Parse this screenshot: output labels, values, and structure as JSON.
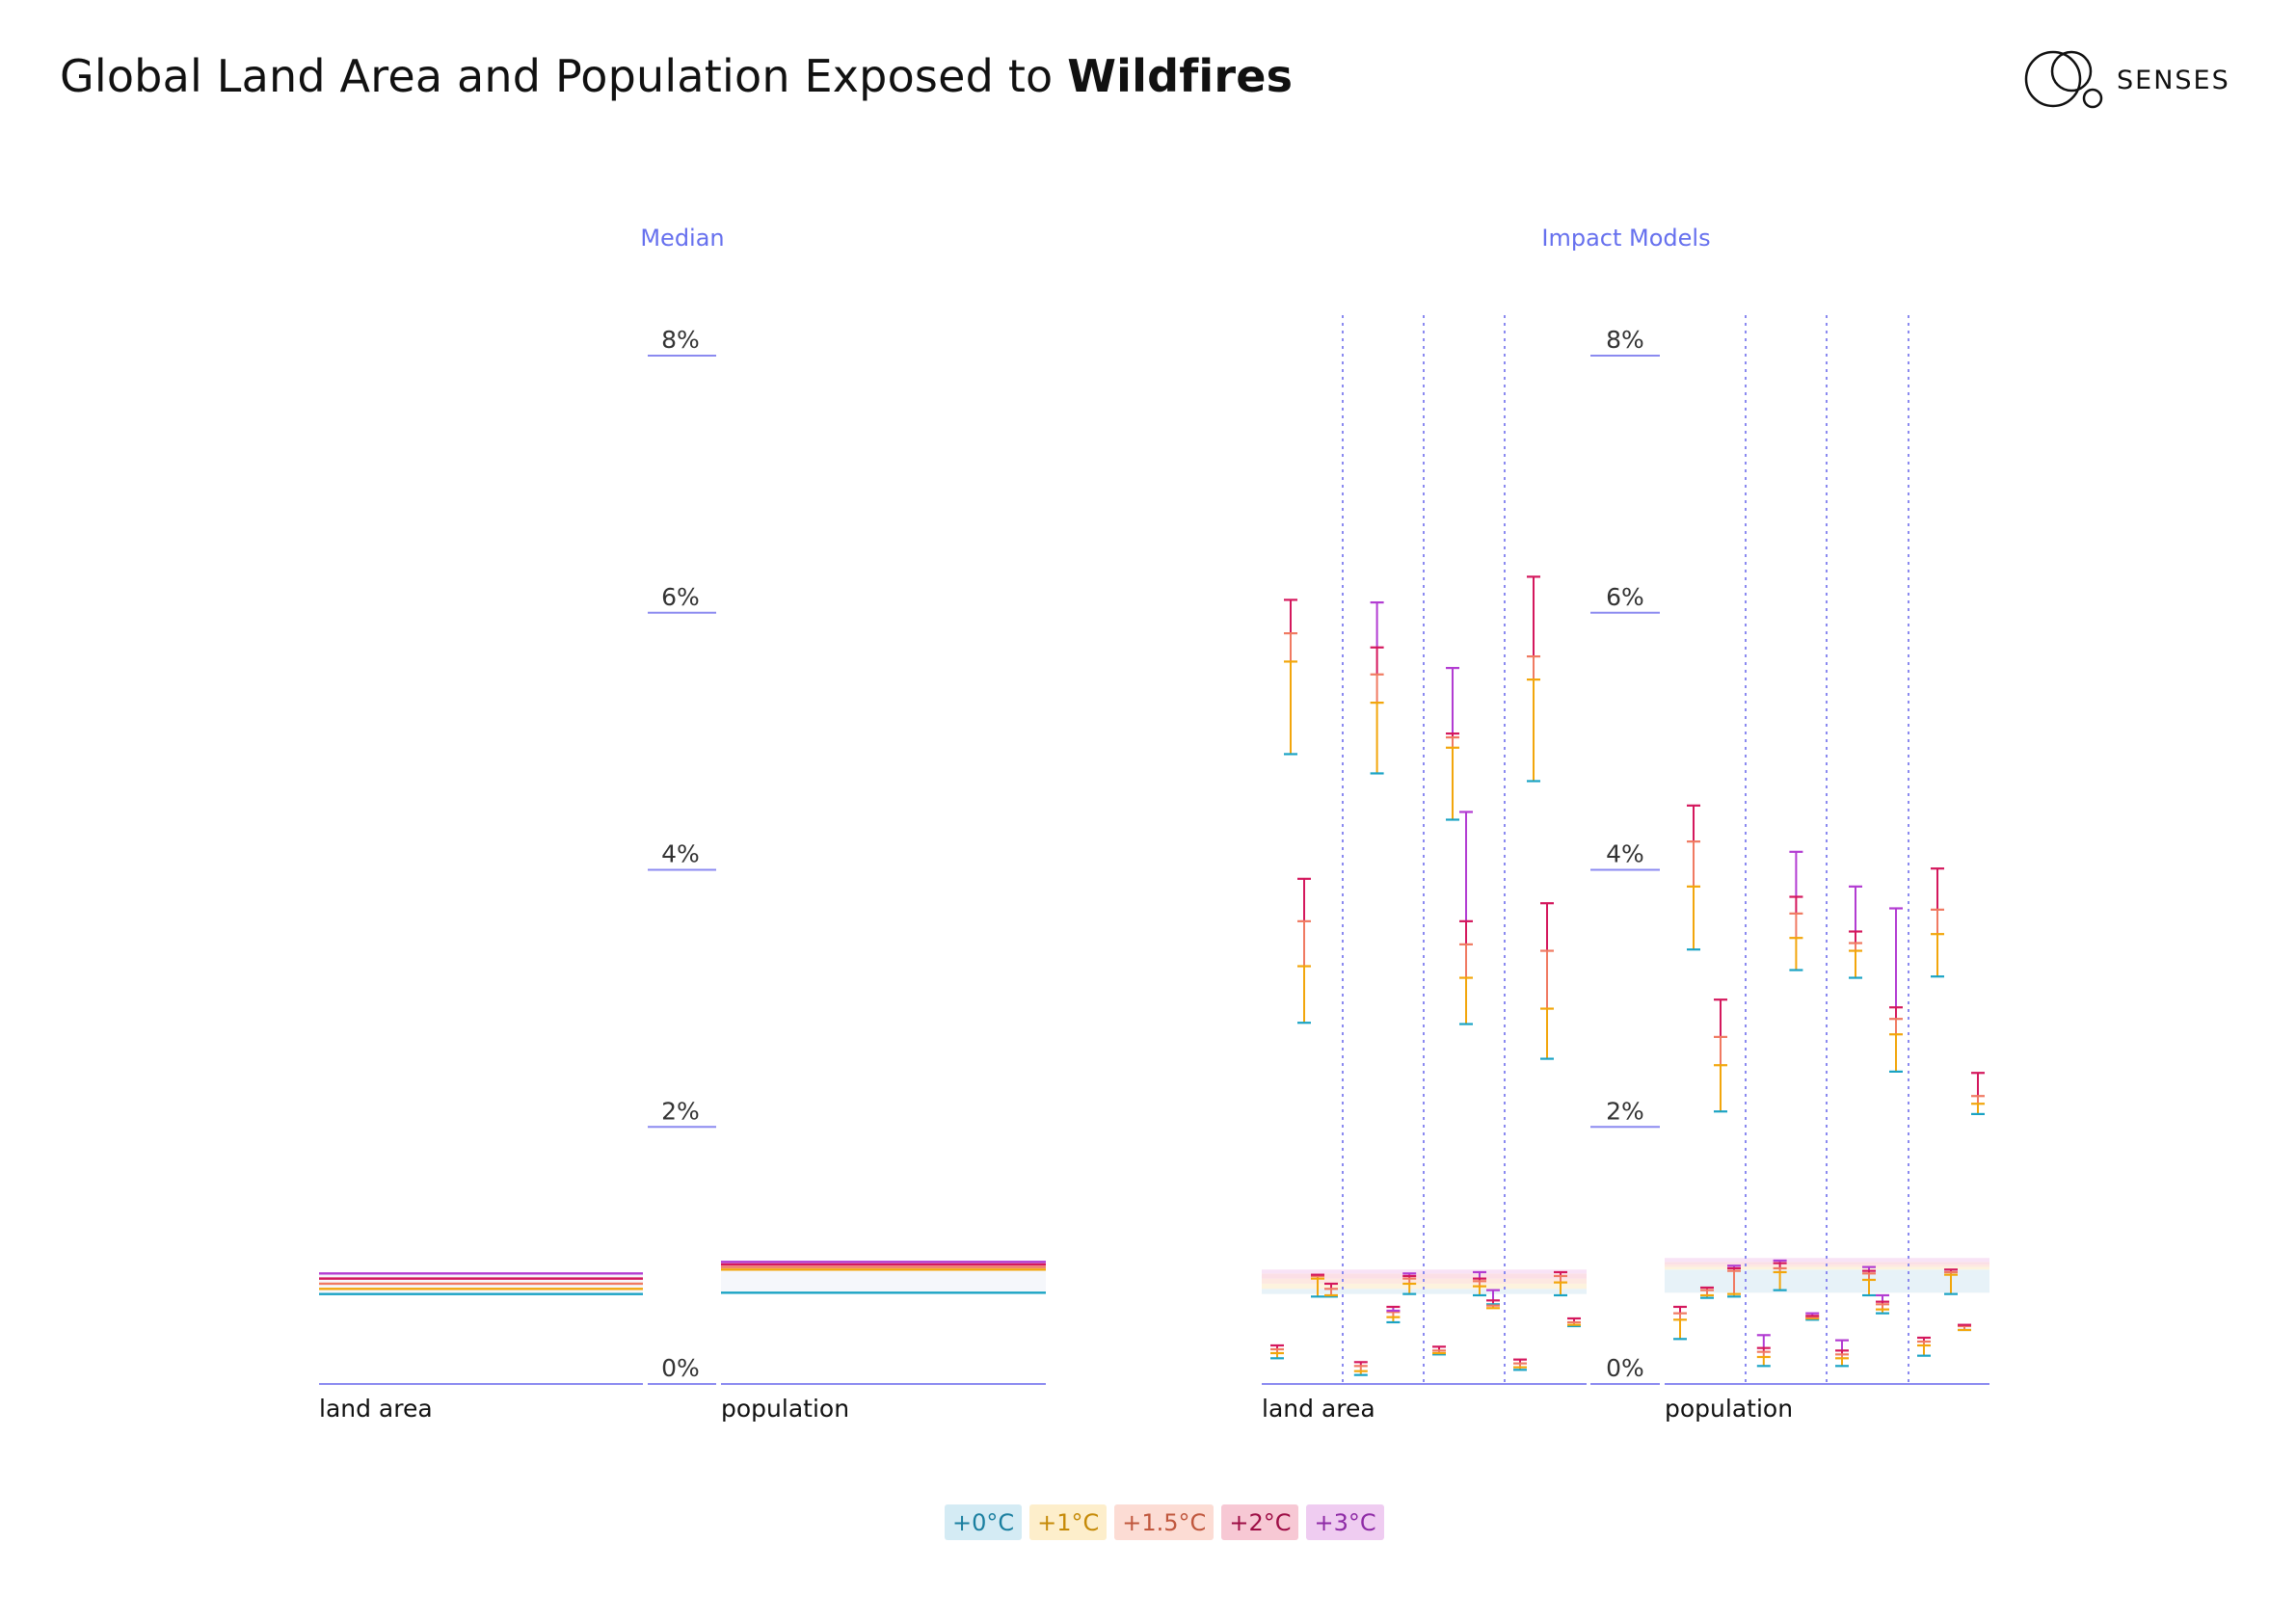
{
  "title": {
    "prefix": "Global Land Area and Population Exposed to ",
    "bold": "Wildfires"
  },
  "logo": {
    "text": "SENSES"
  },
  "colors": {
    "+0°C": "#1aa3c4",
    "+1°C": "#f2a60c",
    "+1.5°C": "#f07a62",
    "+2°C": "#d4185d",
    "+3°C": "#b23cd2",
    "accent": "#6670ee",
    "guide": "#8b8af0"
  },
  "legend": [
    {
      "label": "+0°C",
      "bg": "#d4ebf4",
      "fg": "#1a7fa0"
    },
    {
      "label": "+1°C",
      "bg": "#fdeecb",
      "fg": "#c58a08"
    },
    {
      "label": "+1.5°C",
      "bg": "#fcdcd4",
      "fg": "#c0573d"
    },
    {
      "label": "+2°C",
      "bg": "#f7c8d4",
      "fg": "#9e0e45"
    },
    {
      "label": "+3°C",
      "bg": "#efccf1",
      "fg": "#8e2aa6"
    }
  ],
  "chart_data": [
    {
      "type": "line",
      "title": "Median",
      "ylim": [
        0,
        8
      ],
      "y_ticks": [
        "0%",
        "2%",
        "4%",
        "6%",
        "8%"
      ],
      "categories": [
        "land area",
        "population"
      ],
      "series": [
        {
          "name": "+0°C",
          "values": [
            0.7,
            0.71
          ]
        },
        {
          "name": "+1°C",
          "values": [
            0.74,
            0.89
          ]
        },
        {
          "name": "+1.5°C",
          "values": [
            0.78,
            0.91
          ]
        },
        {
          "name": "+2°C",
          "values": [
            0.82,
            0.93
          ]
        },
        {
          "name": "+3°C",
          "values": [
            0.86,
            0.95
          ]
        }
      ]
    },
    {
      "type": "scatter",
      "title": "Impact Models",
      "ylim": [
        0,
        8
      ],
      "y_ticks": [
        "0%",
        "2%",
        "4%",
        "6%",
        "8%"
      ],
      "categories": [
        "land area",
        "population"
      ],
      "bands": [
        {
          "values": [
            0.7,
            0.74,
            0.78,
            0.82,
            0.86
          ]
        },
        {
          "values": [
            0.71,
            0.89,
            0.91,
            0.93,
            0.95
          ]
        }
      ],
      "models": [
        {
          "panel": 0,
          "column": 0,
          "points": [
            {
              "values": [
                0.2,
                0.24,
                0.27,
                0.3
              ]
            },
            {
              "values": [
                4.9,
                5.62,
                5.84,
                6.1
              ]
            },
            {
              "values": [
                2.81,
                3.25,
                3.6,
                3.93
              ]
            },
            {
              "values": [
                0.68,
                0.82,
                0.84,
                0.85
              ]
            },
            {
              "values": [
                0.68,
                0.69,
                0.74,
                0.78
              ]
            }
          ]
        },
        {
          "panel": 0,
          "column": 1,
          "points": [
            {
              "values": [
                0.07,
                0.1,
                0.14,
                0.17
              ]
            },
            {
              "values": [
                4.75,
                5.3,
                5.52,
                5.73,
                6.08
              ]
            },
            {
              "values": [
                0.48,
                0.52,
                0.56,
                0.6,
                0.57
              ]
            },
            {
              "values": [
                0.7,
                0.78,
                0.82,
                0.84,
                0.86
              ]
            }
          ]
        },
        {
          "panel": 0,
          "column": 2,
          "points": [
            {
              "values": [
                0.23,
                0.24,
                0.26,
                0.29
              ]
            },
            {
              "values": [
                4.39,
                4.95,
                5.03,
                5.06,
                5.57
              ]
            },
            {
              "values": [
                2.8,
                3.16,
                3.42,
                3.6,
                4.45
              ]
            },
            {
              "values": [
                0.69,
                0.76,
                0.8,
                0.82,
                0.87
              ]
            },
            {
              "values": [
                0.62,
                0.59,
                0.61,
                0.65,
                0.73
              ]
            }
          ]
        },
        {
          "panel": 0,
          "column": 3,
          "points": [
            {
              "values": [
                0.11,
                0.13,
                0.16,
                0.19
              ]
            },
            {
              "values": [
                4.69,
                5.48,
                5.66,
                6.28
              ]
            },
            {
              "values": [
                2.53,
                2.92,
                3.37,
                3.74
              ]
            },
            {
              "values": [
                0.69,
                0.79,
                0.84,
                0.87
              ]
            },
            {
              "values": [
                0.45,
                0.46,
                0.48,
                0.51
              ]
            }
          ]
        },
        {
          "panel": 1,
          "column": 0,
          "points": [
            {
              "values": [
                0.35,
                0.5,
                0.55,
                0.6
              ]
            },
            {
              "values": [
                3.38,
                3.87,
                4.22,
                4.5
              ]
            },
            {
              "values": [
                0.67,
                0.69,
                0.73,
                0.75
              ]
            },
            {
              "values": [
                2.12,
                2.48,
                2.7,
                2.99
              ]
            },
            {
              "values": [
                0.68,
                0.7,
                0.88,
                0.9,
                0.92
              ]
            }
          ]
        },
        {
          "panel": 1,
          "column": 1,
          "points": [
            {
              "values": [
                0.14,
                0.21,
                0.25,
                0.28,
                0.38
              ]
            },
            {
              "values": [
                0.73,
                0.87,
                0.9,
                0.94,
                0.96
              ]
            },
            {
              "values": [
                3.22,
                3.47,
                3.66,
                3.79,
                4.14
              ]
            },
            {
              "values": [
                0.5,
                0.51,
                0.52,
                0.53,
                0.55
              ]
            }
          ]
        },
        {
          "panel": 1,
          "column": 2,
          "points": [
            {
              "values": [
                0.14,
                0.2,
                0.23,
                0.26,
                0.34
              ]
            },
            {
              "values": [
                3.16,
                3.37,
                3.43,
                3.52,
                3.87
              ]
            },
            {
              "values": [
                0.69,
                0.81,
                0.86,
                0.88,
                0.91
              ]
            },
            {
              "values": [
                0.55,
                0.58,
                0.62,
                0.64,
                0.69
              ]
            },
            {
              "values": [
                2.43,
                2.72,
                2.84,
                2.93,
                3.7
              ]
            }
          ]
        },
        {
          "panel": 1,
          "column": 3,
          "points": [
            {
              "values": [
                0.22,
                0.3,
                0.33,
                0.36
              ]
            },
            {
              "values": [
                3.17,
                3.5,
                3.69,
                4.01
              ]
            },
            {
              "values": [
                0.7,
                0.85,
                0.87,
                0.89
              ]
            },
            {
              "values": [
                0.42,
                0.42,
                0.45,
                0.46
              ]
            },
            {
              "values": [
                2.1,
                2.18,
                2.24,
                2.42
              ]
            }
          ]
        }
      ]
    }
  ]
}
